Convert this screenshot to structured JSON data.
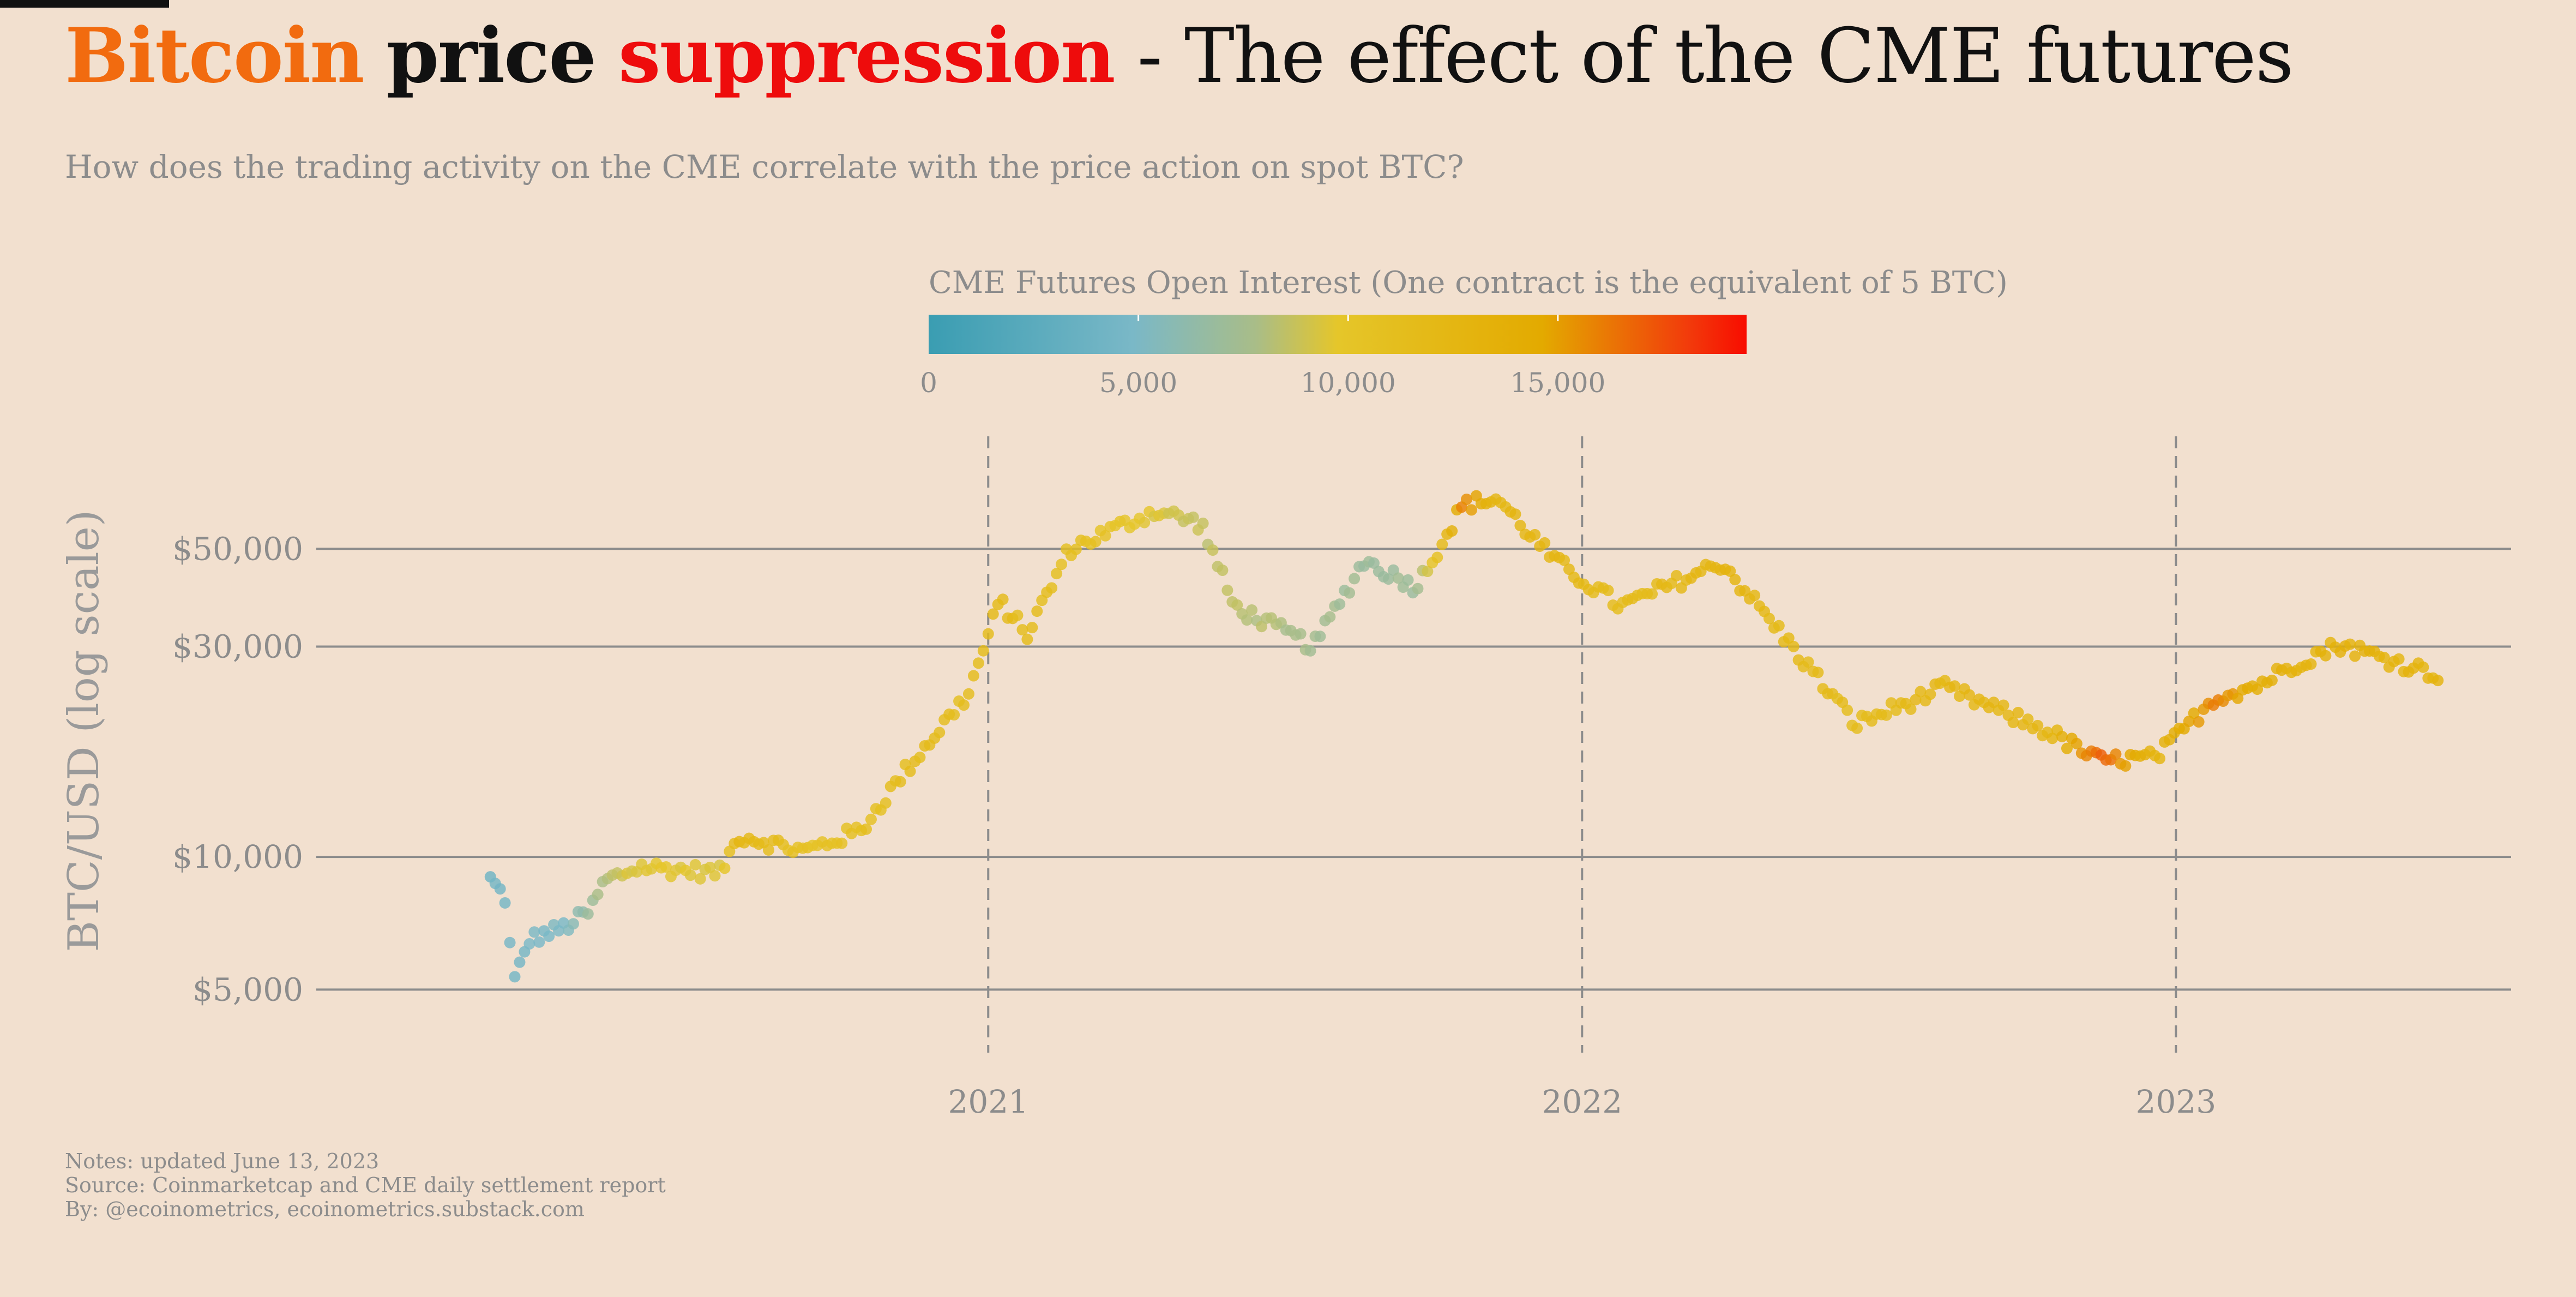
{
  "title": {
    "bitcoin": "Bitcoin",
    "price": "price",
    "suppression": "suppression",
    "rest": "- The effect of the CME futures"
  },
  "subtitle": "How does the trading activity on the CME correlate with the price action on spot BTC?",
  "colors": {
    "background": "#f2e0cf",
    "bitcoin": "#f26b0f",
    "suppression": "#ee0c0c",
    "gridline": "#8c8c8c",
    "text_muted": "#8c8c8c"
  },
  "chart_data": {
    "type": "scatter",
    "x_type": "date",
    "y_scale": "log",
    "ylabel": "BTC/USD (log scale)",
    "xlabel": "",
    "xlim": [
      "2019-11-15",
      "2023-07-26"
    ],
    "ylim": [
      3700,
      90000
    ],
    "yticks": [
      5000,
      10000,
      30000,
      50000
    ],
    "ytick_labels": [
      "$5,000",
      "$10,000",
      "$30,000",
      "$50,000"
    ],
    "xticks": [
      "2021-01-01",
      "2022-01-01",
      "2023-01-01"
    ],
    "xtick_labels": [
      "2021",
      "2022",
      "2023"
    ],
    "grid": {
      "horizontal": true,
      "vertical_dashed_at_xticks": true
    },
    "color_scale": {
      "title": "CME Futures Open Interest (One contract is the equivalent of 5 BTC)",
      "min": 0,
      "max": 19500,
      "ticks": [
        0,
        5000,
        10000,
        15000
      ],
      "tick_labels": [
        "0",
        "5,000",
        "10,000",
        "15,000"
      ],
      "colors": [
        "#3a9db2",
        "#7ab8c7",
        "#a9bd88",
        "#e5c62a",
        "#e3aa00",
        "#f23a0b",
        "#f80c00"
      ],
      "stops": [
        0,
        0.25,
        0.4,
        0.5,
        0.75,
        0.93,
        1.0
      ],
      "placement": "top-center"
    },
    "series_keypoints": [
      {
        "date": "2020-03-01",
        "price": 8900,
        "oi": 4100
      },
      {
        "date": "2020-03-12",
        "price": 7900,
        "oi": 4300
      },
      {
        "date": "2020-03-14",
        "price": 5000,
        "oi": 4500
      },
      {
        "date": "2020-03-25",
        "price": 6500,
        "oi": 4700
      },
      {
        "date": "2020-04-15",
        "price": 6900,
        "oi": 5000
      },
      {
        "date": "2020-05-01",
        "price": 7500,
        "oi": 6800
      },
      {
        "date": "2020-05-10",
        "price": 8800,
        "oi": 8200
      },
      {
        "date": "2020-06-01",
        "price": 9500,
        "oi": 9800
      },
      {
        "date": "2020-07-20",
        "price": 9200,
        "oi": 9300
      },
      {
        "date": "2020-08-01",
        "price": 11200,
        "oi": 12500
      },
      {
        "date": "2020-09-10",
        "price": 10300,
        "oi": 10500
      },
      {
        "date": "2020-10-15",
        "price": 11500,
        "oi": 11000
      },
      {
        "date": "2020-11-10",
        "price": 15500,
        "oi": 11500
      },
      {
        "date": "2020-12-20",
        "price": 23500,
        "oi": 11500
      },
      {
        "date": "2021-01-08",
        "price": 38000,
        "oi": 12000
      },
      {
        "date": "2021-01-25",
        "price": 32000,
        "oi": 11500
      },
      {
        "date": "2021-02-20",
        "price": 50000,
        "oi": 11000
      },
      {
        "date": "2021-04-14",
        "price": 61000,
        "oi": 9500
      },
      {
        "date": "2021-05-12",
        "price": 57000,
        "oi": 8500
      },
      {
        "date": "2021-06-01",
        "price": 37000,
        "oi": 8500
      },
      {
        "date": "2021-07-20",
        "price": 30000,
        "oi": 7500
      },
      {
        "date": "2021-08-20",
        "price": 47000,
        "oi": 7000
      },
      {
        "date": "2021-09-21",
        "price": 41000,
        "oi": 7000
      },
      {
        "date": "2021-10-20",
        "price": 63000,
        "oi": 16000
      },
      {
        "date": "2021-11-10",
        "price": 65000,
        "oi": 12500
      },
      {
        "date": "2021-12-15",
        "price": 47000,
        "oi": 12500
      },
      {
        "date": "2022-01-25",
        "price": 37000,
        "oi": 11500
      },
      {
        "date": "2022-03-28",
        "price": 46500,
        "oi": 13000
      },
      {
        "date": "2022-05-10",
        "price": 30000,
        "oi": 12000
      },
      {
        "date": "2022-06-18",
        "price": 20000,
        "oi": 11500
      },
      {
        "date": "2022-08-12",
        "price": 24200,
        "oi": 12500
      },
      {
        "date": "2022-10-15",
        "price": 19200,
        "oi": 12500
      },
      {
        "date": "2022-11-15",
        "price": 16500,
        "oi": 17000
      },
      {
        "date": "2022-12-20",
        "price": 16800,
        "oi": 13000
      },
      {
        "date": "2023-01-25",
        "price": 23000,
        "oi": 16000
      },
      {
        "date": "2023-02-20",
        "price": 24500,
        "oi": 14000
      },
      {
        "date": "2023-03-20",
        "price": 28000,
        "oi": 13000
      },
      {
        "date": "2023-04-12",
        "price": 30300,
        "oi": 13500
      },
      {
        "date": "2023-06-13",
        "price": 25800,
        "oi": 13000
      }
    ]
  },
  "footer": {
    "notes": "Notes: updated June 13, 2023",
    "source": "Source: Coinmarketcap and CME daily settlement report",
    "by": "By: @ecoinometrics, ecoinometrics.substack.com"
  }
}
